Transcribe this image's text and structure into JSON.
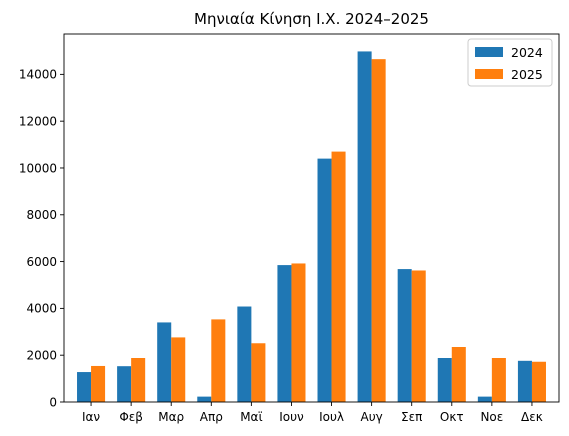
{
  "chart_data": {
    "type": "bar",
    "title": "Μηνιαία Κίνηση Ι.Χ. 2024–2025",
    "xlabel": "",
    "ylabel": "",
    "categories": [
      "Ιαν",
      "Φεβ",
      "Μαρ",
      "Απρ",
      "Μαϊ",
      "Ιουν",
      "Ιουλ",
      "Αυγ",
      "Σεπ",
      "Οκτ",
      "Νοε",
      "Δεκ"
    ],
    "series": [
      {
        "name": "2024",
        "color": "#1f77b4",
        "values": [
          1280,
          1530,
          3400,
          230,
          4080,
          5850,
          10400,
          14980,
          5680,
          1880,
          230,
          1760
        ]
      },
      {
        "name": "2025",
        "color": "#ff7f0e",
        "values": [
          1540,
          1880,
          2760,
          3530,
          2510,
          5920,
          10700,
          14650,
          5620,
          2350,
          1880,
          1720
        ]
      }
    ],
    "ylim": [
      0,
      15725
    ],
    "yticks": [
      0,
      2000,
      4000,
      6000,
      8000,
      10000,
      12000,
      14000
    ],
    "grid": false,
    "legend_position": "top-right"
  }
}
